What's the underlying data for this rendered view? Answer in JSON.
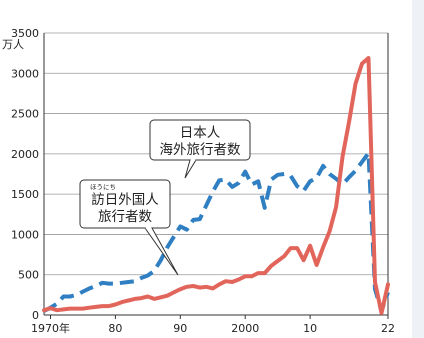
{
  "chart_data": {
    "type": "line",
    "ylabel": "万人",
    "ylim": [
      0,
      3500
    ],
    "yticks": [
      0,
      500,
      1000,
      1500,
      2000,
      2500,
      3000,
      3500
    ],
    "xlim": [
      1969,
      2022
    ],
    "xticks": [
      {
        "x": 1970,
        "label": "1970年"
      },
      {
        "x": 1980,
        "label": "80"
      },
      {
        "x": 1990,
        "label": "90"
      },
      {
        "x": 2000,
        "label": "2000"
      },
      {
        "x": 2010,
        "label": "10"
      },
      {
        "x": 2022,
        "label": "22"
      }
    ],
    "grid": true,
    "series": [
      {
        "name": "日本人海外旅行者数",
        "label_lines": [
          "日本人",
          "海外旅行者数"
        ],
        "color": "#2f7fc2",
        "style": "dashed",
        "x": [
          1969,
          1970,
          1971,
          1972,
          1973,
          1974,
          1975,
          1976,
          1977,
          1978,
          1979,
          1980,
          1981,
          1982,
          1983,
          1984,
          1985,
          1986,
          1987,
          1988,
          1989,
          1990,
          1991,
          1992,
          1993,
          1994,
          1995,
          1996,
          1997,
          1998,
          1999,
          2000,
          2001,
          2002,
          2003,
          2004,
          2005,
          2006,
          2007,
          2008,
          2009,
          2010,
          2011,
          2012,
          2013,
          2014,
          2015,
          2016,
          2017,
          2018,
          2019,
          2020,
          2021,
          2022
        ],
        "values": [
          50,
          90,
          140,
          230,
          230,
          250,
          290,
          330,
          360,
          400,
          390,
          390,
          400,
          410,
          420,
          460,
          490,
          550,
          680,
          840,
          970,
          1100,
          1060,
          1180,
          1190,
          1360,
          1530,
          1670,
          1680,
          1590,
          1640,
          1780,
          1620,
          1660,
          1330,
          1680,
          1740,
          1750,
          1730,
          1600,
          1540,
          1660,
          1700,
          1850,
          1750,
          1690,
          1620,
          1710,
          1790,
          1900,
          2010,
          320,
          50,
          280
        ]
      },
      {
        "name": "訪日外国人旅行者数",
        "label_lines": [
          "訪日外国人",
          "旅行者数"
        ],
        "ruby": "ほうにち",
        "color": "#e2655c",
        "style": "solid",
        "x": [
          1969,
          1970,
          1971,
          1972,
          1973,
          1974,
          1975,
          1976,
          1977,
          1978,
          1979,
          1980,
          1981,
          1982,
          1983,
          1984,
          1985,
          1986,
          1987,
          1988,
          1989,
          1990,
          1991,
          1992,
          1993,
          1994,
          1995,
          1996,
          1997,
          1998,
          1999,
          2000,
          2001,
          2002,
          2003,
          2004,
          2005,
          2006,
          2007,
          2008,
          2009,
          2010,
          2011,
          2012,
          2013,
          2014,
          2015,
          2016,
          2017,
          2018,
          2019,
          2020,
          2021,
          2022
        ],
        "values": [
          60,
          85,
          60,
          70,
          80,
          80,
          80,
          90,
          100,
          110,
          110,
          130,
          160,
          180,
          200,
          210,
          230,
          200,
          220,
          240,
          280,
          320,
          350,
          360,
          340,
          350,
          330,
          380,
          420,
          410,
          440,
          480,
          480,
          520,
          520,
          610,
          670,
          730,
          830,
          830,
          680,
          860,
          620,
          840,
          1040,
          1340,
          1970,
          2400,
          2870,
          3120,
          3190,
          410,
          25,
          380
        ]
      }
    ]
  }
}
